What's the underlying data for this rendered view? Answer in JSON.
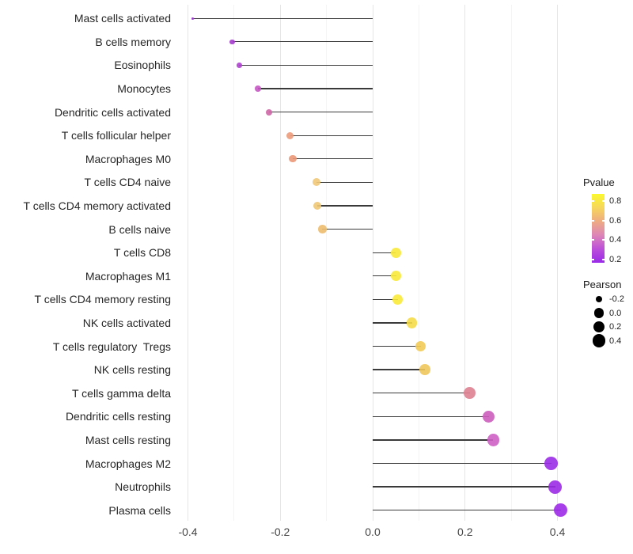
{
  "chart_data": {
    "type": "lollipop",
    "title": "",
    "xlabel": "",
    "ylabel": "",
    "x_tick_values": [
      -0.4,
      -0.2,
      0.0,
      0.2,
      0.4
    ],
    "x_tick_labels": [
      "-0.4",
      "-0.2",
      "0.0",
      "0.2",
      "0.4"
    ],
    "minor_gridlines": [
      -0.3,
      -0.1,
      0.1,
      0.3
    ],
    "xlim": [
      -0.427,
      0.447
    ],
    "grid": true,
    "legend_position": "right",
    "baseline": 0.0,
    "points": [
      {
        "label": "Mast cells activated",
        "pearson": -0.39,
        "color": "#9c38d2"
      },
      {
        "label": "B cells memory",
        "pearson": -0.304,
        "color": "#a53bcd"
      },
      {
        "label": "Eosinophils",
        "pearson": -0.289,
        "color": "#ae42cf"
      },
      {
        "label": "Monocytes",
        "pearson": -0.248,
        "color": "#c558c3"
      },
      {
        "label": "Dendritic cells activated",
        "pearson": -0.225,
        "color": "#ce67a6"
      },
      {
        "label": "T cells follicular helper",
        "pearson": -0.179,
        "color": "#ec9b7b"
      },
      {
        "label": "Macrophages M0",
        "pearson": -0.173,
        "color": "#ec9878"
      },
      {
        "label": "T cells CD4 naive",
        "pearson": -0.121,
        "color": "#efc878"
      },
      {
        "label": "T cells CD4 memory activated",
        "pearson": -0.12,
        "color": "#efc676"
      },
      {
        "label": "B cells naive",
        "pearson": -0.109,
        "color": "#eebc6e"
      },
      {
        "label": "T cells CD8",
        "pearson": 0.05,
        "color": "#f8e93b"
      },
      {
        "label": "Macrophages M1",
        "pearson": 0.051,
        "color": "#f8e93b"
      },
      {
        "label": "T cells CD4 memory resting",
        "pearson": 0.054,
        "color": "#f9ea3a"
      },
      {
        "label": "NK cells activated",
        "pearson": 0.085,
        "color": "#f5dc48"
      },
      {
        "label": "T cells regulatory  Tregs",
        "pearson": 0.104,
        "color": "#f2cc58"
      },
      {
        "label": "NK cells resting",
        "pearson": 0.113,
        "color": "#f0c65c"
      },
      {
        "label": "T cells gamma delta",
        "pearson": 0.21,
        "color": "#de8191"
      },
      {
        "label": "Dendritic cells resting",
        "pearson": 0.251,
        "color": "#cc5ebe"
      },
      {
        "label": "Mast cells resting",
        "pearson": 0.261,
        "color": "#cd60c4"
      },
      {
        "label": "Macrophages M2",
        "pearson": 0.387,
        "color": "#9b2ce5"
      },
      {
        "label": "Neutrophils",
        "pearson": 0.395,
        "color": "#9b2be6"
      },
      {
        "label": "Plasma cells",
        "pearson": 0.407,
        "color": "#9d2be8"
      }
    ],
    "legend_pvalue": {
      "title": "Pvalue",
      "tick_values": [
        0.8,
        0.6,
        0.4,
        0.2
      ],
      "tick_labels": [
        "0.8",
        "0.6",
        "0.4",
        "0.2"
      ],
      "bar_range": [
        0.17,
        0.87
      ],
      "gradient_top_to_bottom": [
        "#fbf92d",
        "#f6d65c",
        "#eeab83",
        "#dd85b8",
        "#bc4fd9",
        "#9a2ae8"
      ]
    },
    "legend_pearson": {
      "title": "Pearson",
      "tick_values": [
        -0.2,
        0.0,
        0.2,
        0.4
      ],
      "tick_labels": [
        "-0.2",
        "0.0",
        "0.2",
        "0.4"
      ],
      "dot_color": "#000000"
    },
    "colors": {
      "segment": "#3a3a3a",
      "grid_major": "#e6e6e6",
      "grid_minor": "#f4f4f4",
      "y_label_text": "#262626",
      "x_label_text": "#454545"
    }
  }
}
